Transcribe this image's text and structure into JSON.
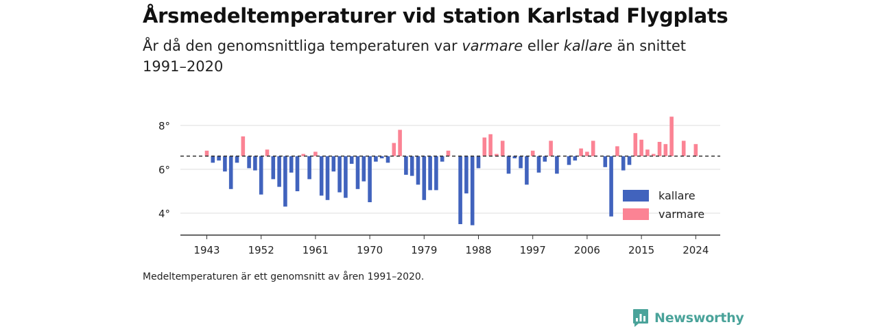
{
  "header": {
    "title": "Årsmedeltemperaturer vid station Karlstad Flygplats",
    "subtitle_a": "År då den genomsnittliga temperaturen var ",
    "subtitle_warm": "varmare",
    "subtitle_b": " eller ",
    "subtitle_cold": "kallare",
    "subtitle_c": " än snittet 1991–2020"
  },
  "footnote": "Medeltemperaturen är ett genomsnitt av åren 1991–2020.",
  "brand": {
    "name": "Newsworthy",
    "color": "#4aa39a",
    "icon": "newsworthy-logo-icon"
  },
  "chart_data": {
    "type": "bar",
    "baseline": 6.6,
    "baseline_style": "dashed",
    "ylim": [
      3.0,
      9.0
    ],
    "yticks": [
      4,
      6,
      8
    ],
    "ytick_labels": [
      "4°",
      "6°",
      "8°"
    ],
    "xticks": [
      1943,
      1952,
      1961,
      1970,
      1979,
      1988,
      1997,
      2006,
      2015,
      2024
    ],
    "xtick_labels": [
      "1943",
      "1952",
      "1961",
      "1970",
      "1979",
      "1988",
      "1997",
      "2006",
      "2015",
      "2024"
    ],
    "grid": "horizontal",
    "legend_position": "bottom-right",
    "colors": {
      "kallare": "#4163bd",
      "varmare": "#fb8394",
      "baseline": "#333333",
      "grid": "#dddddd"
    },
    "series": [
      {
        "name": "kallare",
        "points": [
          [
            1944,
            6.3
          ],
          [
            1945,
            6.4
          ],
          [
            1946,
            5.9
          ],
          [
            1947,
            5.1
          ],
          [
            1948,
            6.3
          ],
          [
            1950,
            6.05
          ],
          [
            1951,
            5.95
          ],
          [
            1952,
            4.85
          ],
          [
            1954,
            5.55
          ],
          [
            1955,
            5.2
          ],
          [
            1956,
            4.3
          ],
          [
            1957,
            5.85
          ],
          [
            1958,
            5.0
          ],
          [
            1960,
            5.55
          ],
          [
            1962,
            4.8
          ],
          [
            1963,
            4.6
          ],
          [
            1964,
            5.9
          ],
          [
            1965,
            4.95
          ],
          [
            1966,
            4.7
          ],
          [
            1967,
            6.25
          ],
          [
            1968,
            5.1
          ],
          [
            1969,
            5.45
          ],
          [
            1970,
            4.5
          ],
          [
            1971,
            6.35
          ],
          [
            1972,
            6.5
          ],
          [
            1973,
            6.3
          ],
          [
            1976,
            5.75
          ],
          [
            1977,
            5.7
          ],
          [
            1978,
            5.3
          ],
          [
            1979,
            4.6
          ],
          [
            1980,
            5.05
          ],
          [
            1981,
            5.05
          ],
          [
            1982,
            6.35
          ],
          [
            1985,
            3.5
          ],
          [
            1986,
            4.9
          ],
          [
            1987,
            3.45
          ],
          [
            1988,
            6.05
          ],
          [
            1993,
            5.8
          ],
          [
            1994,
            6.5
          ],
          [
            1995,
            6.05
          ],
          [
            1996,
            5.3
          ],
          [
            1998,
            5.85
          ],
          [
            1999,
            6.35
          ],
          [
            2001,
            5.8
          ],
          [
            2003,
            6.2
          ],
          [
            2004,
            6.4
          ],
          [
            2009,
            6.1
          ],
          [
            2010,
            3.85
          ],
          [
            2012,
            5.95
          ],
          [
            2013,
            6.2
          ]
        ]
      },
      {
        "name": "varmare",
        "points": [
          [
            1943,
            6.85
          ],
          [
            1949,
            7.5
          ],
          [
            1953,
            6.9
          ],
          [
            1959,
            6.7
          ],
          [
            1961,
            6.8
          ],
          [
            1974,
            7.2
          ],
          [
            1975,
            7.8
          ],
          [
            1983,
            6.85
          ],
          [
            1989,
            7.45
          ],
          [
            1990,
            7.6
          ],
          [
            1991,
            6.7
          ],
          [
            1992,
            7.3
          ],
          [
            1997,
            6.85
          ],
          [
            2000,
            7.3
          ],
          [
            2005,
            6.95
          ],
          [
            2006,
            6.8
          ],
          [
            2007,
            7.3
          ],
          [
            2011,
            7.05
          ],
          [
            2014,
            7.65
          ],
          [
            2015,
            7.35
          ],
          [
            2016,
            6.9
          ],
          [
            2017,
            6.7
          ],
          [
            2018,
            7.25
          ],
          [
            2019,
            7.15
          ],
          [
            2020,
            8.4
          ],
          [
            2022,
            7.3
          ],
          [
            2024,
            7.15
          ]
        ]
      }
    ]
  }
}
